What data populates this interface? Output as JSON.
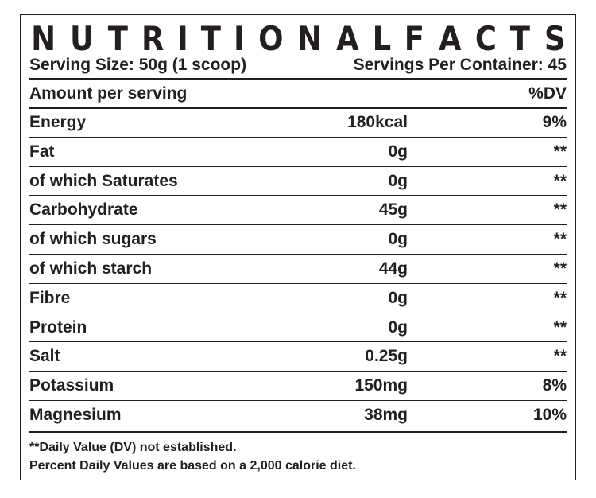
{
  "title": "NUTRITIONAL FACTS",
  "serving_size": "Serving Size: 50g (1 scoop)",
  "servings_per_container": "Servings Per Container: 45",
  "header": {
    "label": "Amount per serving",
    "dv_label": "%DV"
  },
  "rows": [
    {
      "name": "Energy",
      "amount": "180kcal",
      "dv": "9%"
    },
    {
      "name": "Fat",
      "amount": "0g",
      "dv": "**"
    },
    {
      "name": "of which Saturates",
      "amount": "0g",
      "dv": "**"
    },
    {
      "name": "Carbohydrate",
      "amount": "45g",
      "dv": "**"
    },
    {
      "name": "of which sugars",
      "amount": "0g",
      "dv": "**"
    },
    {
      "name": "of which starch",
      "amount": "44g",
      "dv": "**"
    },
    {
      "name": "Fibre",
      "amount": "0g",
      "dv": "**"
    },
    {
      "name": "Protein",
      "amount": "0g",
      "dv": "**"
    },
    {
      "name": "Salt",
      "amount": "0.25g",
      "dv": "**"
    },
    {
      "name": "Potassium",
      "amount": "150mg",
      "dv": "8%"
    },
    {
      "name": "Magnesium",
      "amount": "38mg",
      "dv": "10%"
    }
  ],
  "footnotes": [
    "**Daily Value (DV) not established.",
    "Percent Daily Values are based on a 2,000 calorie diet."
  ],
  "colors": {
    "ink": "#231f20",
    "background": "#ffffff"
  }
}
